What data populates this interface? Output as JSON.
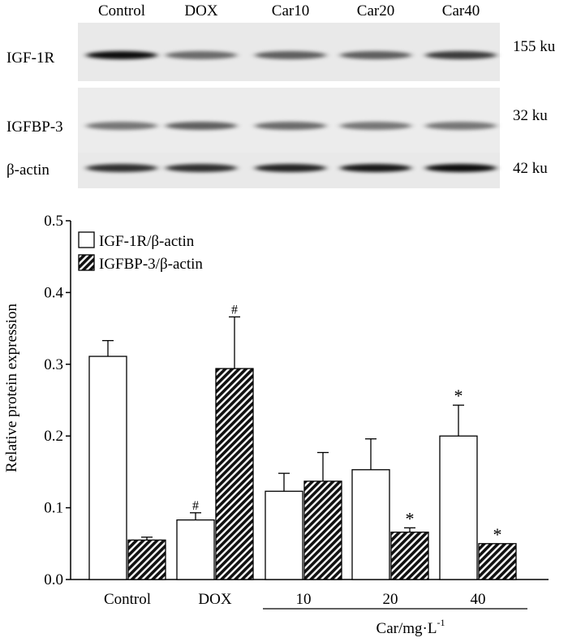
{
  "blot": {
    "lane_labels": [
      "Control",
      "DOX",
      "Car10",
      "Car20",
      "Car40"
    ],
    "rows": [
      {
        "name": "IGF-1R",
        "size": "155 ku",
        "intensity": [
          0.95,
          0.55,
          0.6,
          0.6,
          0.75
        ]
      },
      {
        "name": "IGFBP-3",
        "size": "32 ku",
        "intensity": [
          0.5,
          0.6,
          0.55,
          0.5,
          0.5
        ]
      },
      {
        "name": "β-actin",
        "size": "42 ku",
        "intensity": [
          0.8,
          0.8,
          0.85,
          0.9,
          0.95
        ]
      }
    ]
  },
  "chart_data": {
    "type": "bar",
    "categories": [
      "Control",
      "DOX",
      "10",
      "20",
      "40"
    ],
    "group_label": "Car/mg·L",
    "group_label_sup": "-1",
    "ylabel": "Relative protein expression",
    "ylim": [
      0,
      0.5
    ],
    "yticks": [
      "0.0",
      "0.1",
      "0.2",
      "0.3",
      "0.4",
      "0.5"
    ],
    "ytick_values": [
      0,
      0.1,
      0.2,
      0.3,
      0.4,
      0.5
    ],
    "legend_position": "top-left",
    "series": [
      {
        "name": "IGF-1R/β-actin",
        "fill": "white",
        "values": [
          0.311,
          0.083,
          0.123,
          0.153,
          0.2
        ],
        "errors": [
          0.022,
          0.01,
          0.025,
          0.043,
          0.043
        ],
        "annotations": [
          "",
          "#",
          "",
          "",
          "*"
        ]
      },
      {
        "name": "IGFBP-3/β-actin",
        "fill": "hatched",
        "values": [
          0.055,
          0.294,
          0.137,
          0.066,
          0.05
        ],
        "errors": [
          0.004,
          0.072,
          0.04,
          0.006,
          0.0
        ],
        "annotations": [
          "",
          "#",
          "",
          "*",
          "*"
        ]
      }
    ]
  }
}
